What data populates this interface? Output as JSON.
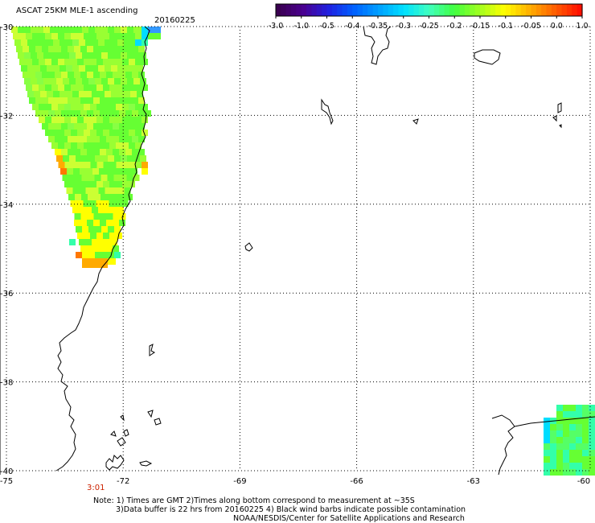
{
  "header": {
    "title": "ASCAT 25KM MLE-1 ascending",
    "date": "20160225"
  },
  "colorbar": {
    "tick_labels": [
      "-3.0",
      "-1.0",
      "-0.5",
      "-0.4",
      "-0.35",
      "-0.3",
      "-0.25",
      "-0.2",
      "-0.15",
      "-0.1",
      "-0.05",
      "0.0",
      "1.0"
    ],
    "colors": [
      "#3a0050",
      "#4a0090",
      "#2020e0",
      "#0060ff",
      "#00a0ff",
      "#00e0ff",
      "#40ffc0",
      "#40ff40",
      "#a0ff20",
      "#ffff00",
      "#ffb000",
      "#ff6000",
      "#ff1000"
    ]
  },
  "map": {
    "lat_labels": [
      "-30",
      "-32",
      "-34",
      "-36",
      "-38",
      "-40"
    ],
    "lon_labels": [
      "-75",
      "-72",
      "-69",
      "-66",
      "-63",
      "-60"
    ],
    "lat_range": [
      -40,
      -30
    ],
    "lon_range": [
      -75,
      -60
    ],
    "grid": "dotted",
    "time_label": "3:01",
    "palette": {
      "green": "#66ff33",
      "light_green": "#99ff33",
      "yellow_green": "#ccff33",
      "yellow": "#ffff00",
      "orange": "#ffaa00",
      "dark_orange": "#ff7700",
      "teal": "#33ffaa",
      "cyan": "#00ddff",
      "blue": "#3399ff"
    }
  },
  "footer": {
    "line1": "Note: 1) Times are GMT 2)Times along bottom correspond to measurement at ~35S",
    "line2": "3)Data buffer is 22 hrs from 20160225 4) Black wind barbs indicate possible contamination",
    "line3": "NOAA/NESDIS/Center for Satellite Applications and Research"
  }
}
